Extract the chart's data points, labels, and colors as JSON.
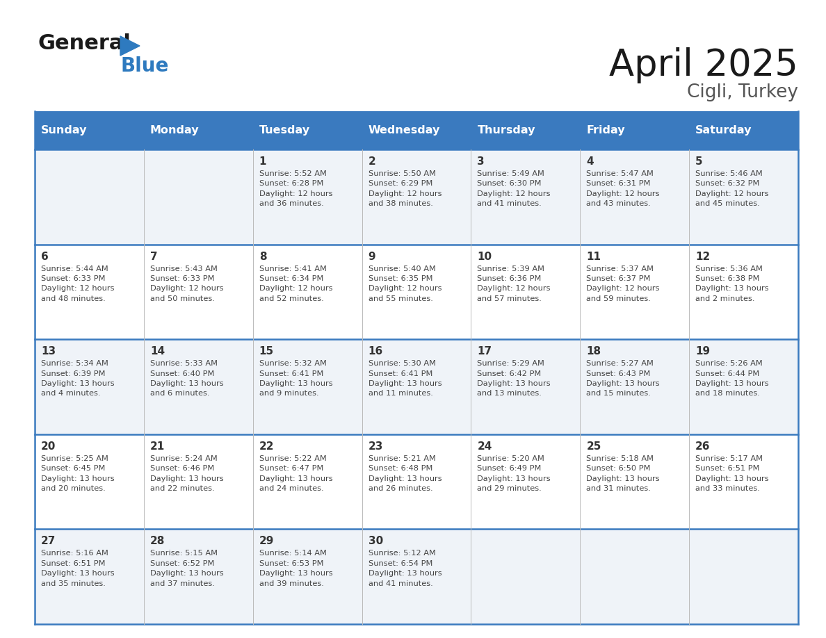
{
  "title": "April 2025",
  "subtitle": "Cigli, Turkey",
  "header_bg_color": "#3a7abf",
  "header_text_color": "#ffffff",
  "day_names": [
    "Sunday",
    "Monday",
    "Tuesday",
    "Wednesday",
    "Thursday",
    "Friday",
    "Saturday"
  ],
  "row_bg_even": "#eff3f8",
  "row_bg_odd": "#ffffff",
  "cell_text_color": "#333333",
  "border_color": "#3a7abf",
  "weeks": [
    [
      {
        "day": null,
        "info": null
      },
      {
        "day": null,
        "info": null
      },
      {
        "day": 1,
        "info": "Sunrise: 5:52 AM\nSunset: 6:28 PM\nDaylight: 12 hours\nand 36 minutes."
      },
      {
        "day": 2,
        "info": "Sunrise: 5:50 AM\nSunset: 6:29 PM\nDaylight: 12 hours\nand 38 minutes."
      },
      {
        "day": 3,
        "info": "Sunrise: 5:49 AM\nSunset: 6:30 PM\nDaylight: 12 hours\nand 41 minutes."
      },
      {
        "day": 4,
        "info": "Sunrise: 5:47 AM\nSunset: 6:31 PM\nDaylight: 12 hours\nand 43 minutes."
      },
      {
        "day": 5,
        "info": "Sunrise: 5:46 AM\nSunset: 6:32 PM\nDaylight: 12 hours\nand 45 minutes."
      }
    ],
    [
      {
        "day": 6,
        "info": "Sunrise: 5:44 AM\nSunset: 6:33 PM\nDaylight: 12 hours\nand 48 minutes."
      },
      {
        "day": 7,
        "info": "Sunrise: 5:43 AM\nSunset: 6:33 PM\nDaylight: 12 hours\nand 50 minutes."
      },
      {
        "day": 8,
        "info": "Sunrise: 5:41 AM\nSunset: 6:34 PM\nDaylight: 12 hours\nand 52 minutes."
      },
      {
        "day": 9,
        "info": "Sunrise: 5:40 AM\nSunset: 6:35 PM\nDaylight: 12 hours\nand 55 minutes."
      },
      {
        "day": 10,
        "info": "Sunrise: 5:39 AM\nSunset: 6:36 PM\nDaylight: 12 hours\nand 57 minutes."
      },
      {
        "day": 11,
        "info": "Sunrise: 5:37 AM\nSunset: 6:37 PM\nDaylight: 12 hours\nand 59 minutes."
      },
      {
        "day": 12,
        "info": "Sunrise: 5:36 AM\nSunset: 6:38 PM\nDaylight: 13 hours\nand 2 minutes."
      }
    ],
    [
      {
        "day": 13,
        "info": "Sunrise: 5:34 AM\nSunset: 6:39 PM\nDaylight: 13 hours\nand 4 minutes."
      },
      {
        "day": 14,
        "info": "Sunrise: 5:33 AM\nSunset: 6:40 PM\nDaylight: 13 hours\nand 6 minutes."
      },
      {
        "day": 15,
        "info": "Sunrise: 5:32 AM\nSunset: 6:41 PM\nDaylight: 13 hours\nand 9 minutes."
      },
      {
        "day": 16,
        "info": "Sunrise: 5:30 AM\nSunset: 6:41 PM\nDaylight: 13 hours\nand 11 minutes."
      },
      {
        "day": 17,
        "info": "Sunrise: 5:29 AM\nSunset: 6:42 PM\nDaylight: 13 hours\nand 13 minutes."
      },
      {
        "day": 18,
        "info": "Sunrise: 5:27 AM\nSunset: 6:43 PM\nDaylight: 13 hours\nand 15 minutes."
      },
      {
        "day": 19,
        "info": "Sunrise: 5:26 AM\nSunset: 6:44 PM\nDaylight: 13 hours\nand 18 minutes."
      }
    ],
    [
      {
        "day": 20,
        "info": "Sunrise: 5:25 AM\nSunset: 6:45 PM\nDaylight: 13 hours\nand 20 minutes."
      },
      {
        "day": 21,
        "info": "Sunrise: 5:24 AM\nSunset: 6:46 PM\nDaylight: 13 hours\nand 22 minutes."
      },
      {
        "day": 22,
        "info": "Sunrise: 5:22 AM\nSunset: 6:47 PM\nDaylight: 13 hours\nand 24 minutes."
      },
      {
        "day": 23,
        "info": "Sunrise: 5:21 AM\nSunset: 6:48 PM\nDaylight: 13 hours\nand 26 minutes."
      },
      {
        "day": 24,
        "info": "Sunrise: 5:20 AM\nSunset: 6:49 PM\nDaylight: 13 hours\nand 29 minutes."
      },
      {
        "day": 25,
        "info": "Sunrise: 5:18 AM\nSunset: 6:50 PM\nDaylight: 13 hours\nand 31 minutes."
      },
      {
        "day": 26,
        "info": "Sunrise: 5:17 AM\nSunset: 6:51 PM\nDaylight: 13 hours\nand 33 minutes."
      }
    ],
    [
      {
        "day": 27,
        "info": "Sunrise: 5:16 AM\nSunset: 6:51 PM\nDaylight: 13 hours\nand 35 minutes."
      },
      {
        "day": 28,
        "info": "Sunrise: 5:15 AM\nSunset: 6:52 PM\nDaylight: 13 hours\nand 37 minutes."
      },
      {
        "day": 29,
        "info": "Sunrise: 5:14 AM\nSunset: 6:53 PM\nDaylight: 13 hours\nand 39 minutes."
      },
      {
        "day": 30,
        "info": "Sunrise: 5:12 AM\nSunset: 6:54 PM\nDaylight: 13 hours\nand 41 minutes."
      },
      {
        "day": null,
        "info": null
      },
      {
        "day": null,
        "info": null
      },
      {
        "day": null,
        "info": null
      }
    ]
  ]
}
